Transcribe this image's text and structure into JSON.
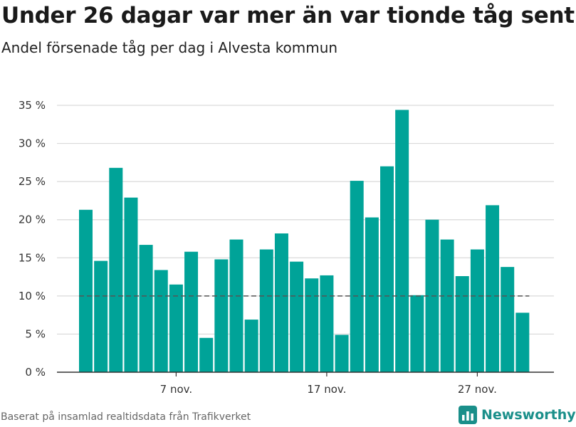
{
  "header": {
    "title": "Under 26 dagar var mer än var tionde tåg sent",
    "subtitle": "Andel försenade tåg per dag i Alvesta kommun"
  },
  "footer": {
    "source": "Baserat på insamlad realtidsdata från Trafikverket",
    "brand": "Newsworthy",
    "brand_icon": "bar-chart-logo-icon"
  },
  "colors": {
    "bar": "#00a398",
    "grid": "#d9d9d9",
    "reference_line": "#555555",
    "axis": "#333333",
    "brand": "#1a8f8a"
  },
  "chart_data": {
    "type": "bar",
    "unit": "%",
    "x_tick_labels": [
      {
        "day": 7,
        "label": "7 nov."
      },
      {
        "day": 17,
        "label": "17 nov."
      },
      {
        "day": 27,
        "label": "27 nov."
      }
    ],
    "days": [
      1,
      2,
      3,
      4,
      5,
      6,
      7,
      8,
      9,
      10,
      11,
      12,
      13,
      14,
      15,
      16,
      17,
      18,
      19,
      20,
      21,
      22,
      23,
      24,
      25,
      26,
      27,
      28,
      29,
      30
    ],
    "values": [
      21.3,
      14.6,
      26.8,
      22.9,
      16.7,
      13.4,
      11.5,
      15.8,
      4.5,
      14.8,
      17.4,
      6.9,
      16.1,
      18.2,
      14.5,
      12.3,
      12.7,
      4.9,
      25.1,
      20.3,
      27.0,
      34.4,
      10.1,
      20.0,
      17.4,
      12.6,
      16.1,
      21.9,
      13.8,
      7.8
    ],
    "reference_line": 10,
    "ylim": [
      0,
      35
    ],
    "yticks": [
      {
        "value": 0,
        "label": "0 %"
      },
      {
        "value": 5,
        "label": "5 %"
      },
      {
        "value": 10,
        "label": "10 %"
      },
      {
        "value": 15,
        "label": "15 %"
      },
      {
        "value": 20,
        "label": "20 %"
      },
      {
        "value": 25,
        "label": "25 %"
      },
      {
        "value": 30,
        "label": "30 %"
      },
      {
        "value": 35,
        "label": "35 %"
      }
    ],
    "grid": true
  }
}
